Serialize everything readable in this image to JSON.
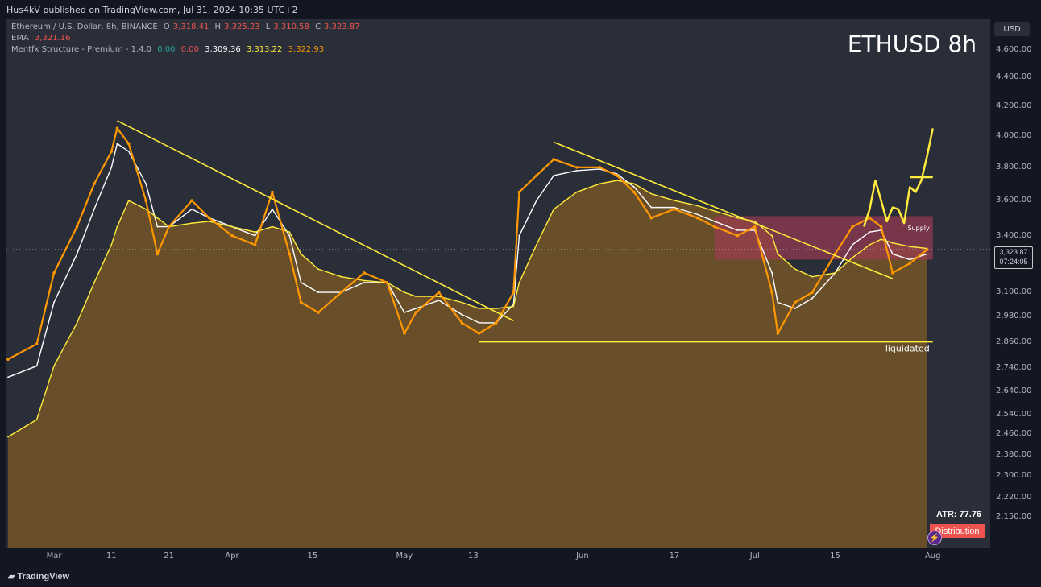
{
  "header": {
    "published": "Hus4kV published on TradingView.com, Jul 31, 2024 10:35 UTC+2"
  },
  "legend": {
    "symbol": "Ethereum / U.S. Dollar, 8h, BINANCE",
    "o_label": "O",
    "o_value": "3,318.41",
    "h_label": "H",
    "h_value": "3,325.23",
    "l_label": "L",
    "l_value": "3,310.58",
    "c_label": "C",
    "c_value": "3,323.87",
    "ema_label": "EMA",
    "ema_value": "3,321.16",
    "indicator_label": "Mentfx Structure - Premium - 1.4.0",
    "ind_v1": "0.00",
    "ind_v2": "0.00",
    "ind_v3": "3,309.36",
    "ind_v4": "3,313.22",
    "ind_v5": "3,322.93"
  },
  "chart_title": "ETHUSD 8h",
  "currency": "USD",
  "last_price": "3,323.87",
  "countdown": "07:24:05",
  "atr_label": "ATR: 77.76",
  "distribution_label": "Distribution",
  "annotations": {
    "supply": "Supply",
    "liquidated": "liquidated"
  },
  "footer": {
    "logo": "TradingView"
  },
  "colors": {
    "background": "#2a2e39",
    "candles": "#ff9800",
    "area_fill": "#6b5128",
    "trendline": "#ffeb3b",
    "supply_zone": "#a33b55",
    "distribution": "#ef5350"
  },
  "chart_data": {
    "type": "line",
    "yscale": "log",
    "ylim": [
      2100,
      4650
    ],
    "y_ticks": [
      "4,600.00",
      "4,400.00",
      "4,200.00",
      "4,000.00",
      "3,800.00",
      "3,600.00",
      "3,400.00",
      "3,100.00",
      "2,980.00",
      "2,860.00",
      "2,740.00",
      "2,640.00",
      "2,540.00",
      "2,460.00",
      "2,380.00",
      "2,300.00",
      "2,220.00",
      "2,150.00"
    ],
    "x_ticks": [
      "Mar",
      "11",
      "21",
      "Apr",
      "15",
      "May",
      "13",
      "Jun",
      "17",
      "Jul",
      "15",
      "Aug"
    ],
    "xlim": [
      "2024-02-22",
      "2024-08-03"
    ],
    "x": [
      "2024-02-22",
      "2024-02-27",
      "2024-03-01",
      "2024-03-05",
      "2024-03-08",
      "2024-03-11",
      "2024-03-12",
      "2024-03-14",
      "2024-03-17",
      "2024-03-19",
      "2024-03-21",
      "2024-03-25",
      "2024-03-28",
      "2024-04-01",
      "2024-04-05",
      "2024-04-08",
      "2024-04-11",
      "2024-04-13",
      "2024-04-16",
      "2024-04-20",
      "2024-04-24",
      "2024-04-28",
      "2024-05-01",
      "2024-05-03",
      "2024-05-07",
      "2024-05-11",
      "2024-05-14",
      "2024-05-17",
      "2024-05-20",
      "2024-05-21",
      "2024-05-24",
      "2024-05-27",
      "2024-05-31",
      "2024-06-04",
      "2024-06-07",
      "2024-06-10",
      "2024-06-13",
      "2024-06-17",
      "2024-06-21",
      "2024-06-24",
      "2024-06-28",
      "2024-07-01",
      "2024-07-04",
      "2024-07-05",
      "2024-07-08",
      "2024-07-11",
      "2024-07-15",
      "2024-07-18",
      "2024-07-21",
      "2024-07-23",
      "2024-07-25",
      "2024-07-28",
      "2024-07-31"
    ],
    "series": [
      {
        "values": [
          2780,
          2850,
          3200,
          3450,
          3700,
          3900,
          4050,
          3950,
          3600,
          3300,
          3450,
          3600,
          3500,
          3400,
          3350,
          3650,
          3300,
          3050,
          3000,
          3100,
          3200,
          3150,
          2900,
          3000,
          3100,
          2950,
          2900,
          2950,
          3100,
          3650,
          3750,
          3850,
          3800,
          3800,
          3750,
          3650,
          3500,
          3550,
          3500,
          3450,
          3400,
          3450,
          3100,
          2900,
          3050,
          3100,
          3300,
          3450,
          3500,
          3450,
          3200,
          3250,
          3323.87
        ]
      },
      {
        "values": [
          2700,
          2750,
          3050,
          3300,
          3550,
          3800,
          3950,
          3900,
          3700,
          3450,
          3450,
          3550,
          3500,
          3450,
          3400,
          3550,
          3400,
          3150,
          3100,
          3100,
          3150,
          3150,
          3000,
          3020,
          3060,
          2990,
          2950,
          2950,
          3040,
          3400,
          3600,
          3750,
          3780,
          3790,
          3760,
          3680,
          3560,
          3560,
          3520,
          3480,
          3430,
          3430,
          3200,
          3050,
          3020,
          3070,
          3200,
          3350,
          3420,
          3430,
          3300,
          3270,
          3300
        ]
      },
      {
        "values": [
          2450,
          2520,
          2750,
          2950,
          3150,
          3350,
          3450,
          3600,
          3550,
          3500,
          3450,
          3470,
          3480,
          3450,
          3420,
          3450,
          3420,
          3300,
          3220,
          3180,
          3160,
          3150,
          3100,
          3080,
          3080,
          3050,
          3020,
          3020,
          3030,
          3150,
          3350,
          3550,
          3650,
          3700,
          3720,
          3700,
          3640,
          3600,
          3570,
          3540,
          3500,
          3480,
          3400,
          3300,
          3220,
          3180,
          3200,
          3280,
          3350,
          3380,
          3360,
          3340,
          3330
        ]
      }
    ],
    "trendlines": [
      {
        "x": [
          "2024-03-12",
          "2024-05-20"
        ],
        "y": [
          4100,
          2960
        ]
      },
      {
        "x": [
          "2024-05-27",
          "2024-07-25"
        ],
        "y": [
          3960,
          3170
        ]
      },
      {
        "x": [
          "2024-05-14",
          "2024-08-01"
        ],
        "y": [
          2860,
          2860
        ]
      }
    ],
    "supply_zone": {
      "x": [
        "2024-06-24",
        "2024-08-01"
      ],
      "y": [
        3270,
        3510
      ]
    },
    "projection": {
      "x": [
        "2024-07-20",
        "2024-07-21",
        "2024-07-22",
        "2024-07-23",
        "2024-07-24",
        "2024-07-25",
        "2024-07-26",
        "2024-07-27",
        "2024-07-28",
        "2024-07-29",
        "2024-07-30",
        "2024-07-31",
        "2024-08-01"
      ],
      "y": [
        3450,
        3550,
        3720,
        3600,
        3480,
        3560,
        3550,
        3470,
        3680,
        3650,
        3720,
        3870,
        4050
      ]
    },
    "projection_target": {
      "x": [
        "2024-07-28",
        "2024-08-01"
      ],
      "y": [
        3740,
        3740
      ]
    }
  }
}
